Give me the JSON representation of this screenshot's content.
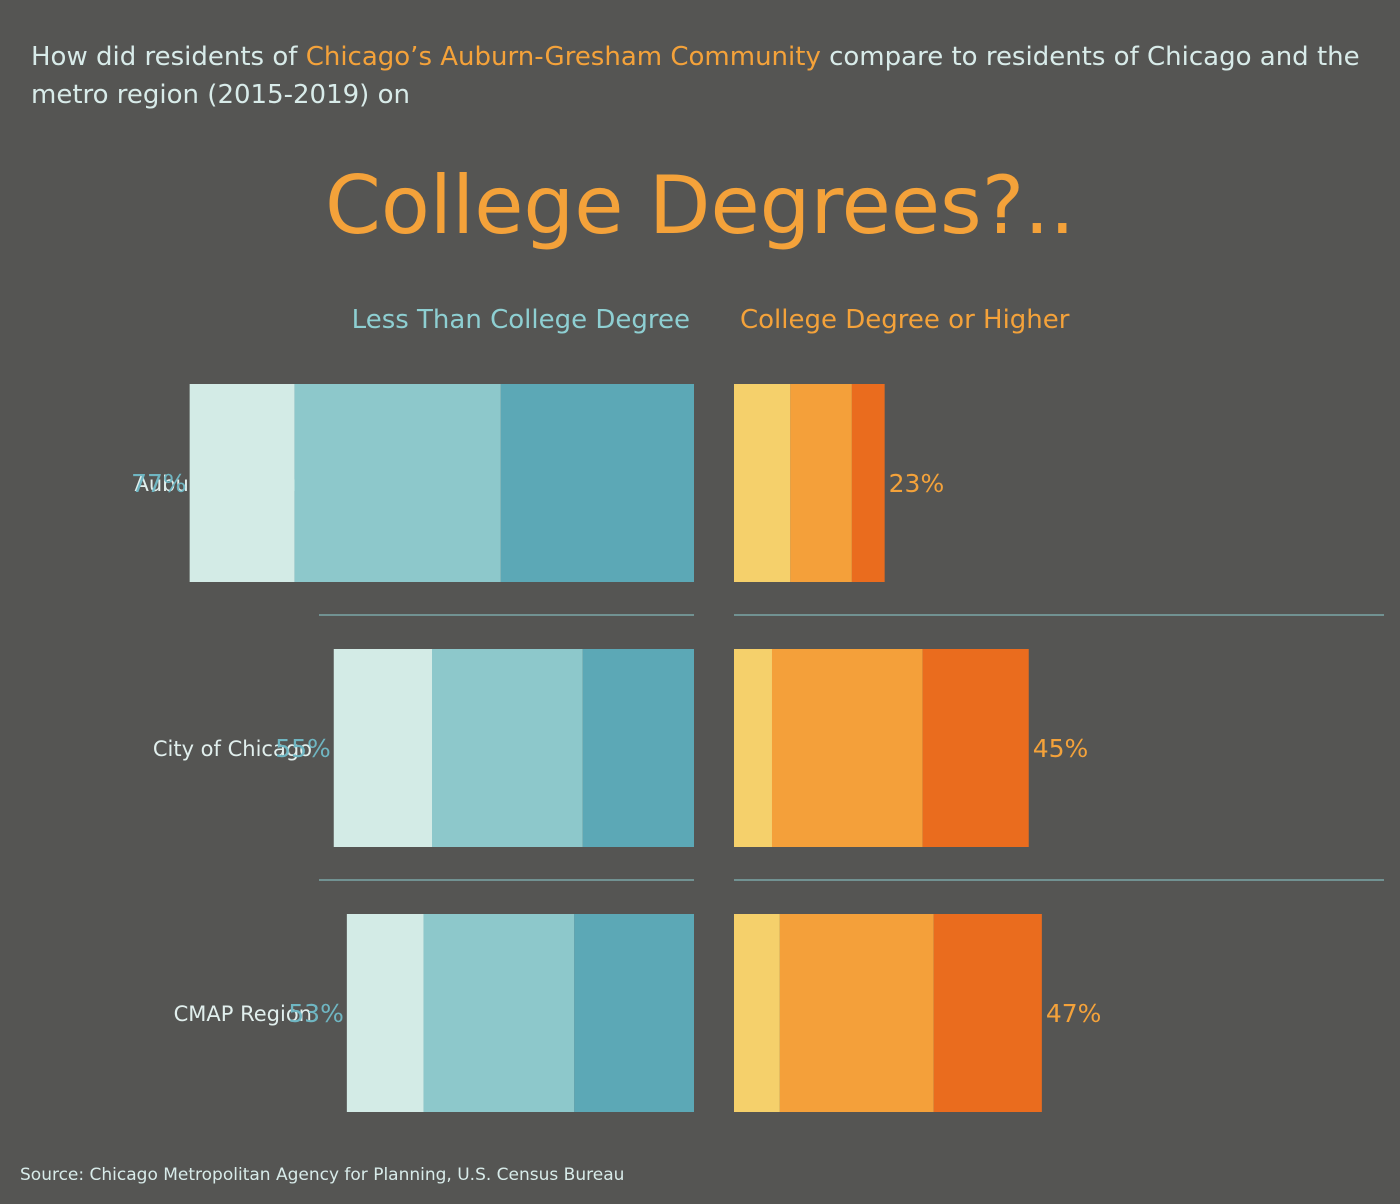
{
  "intro": {
    "prefix": "How did residents of ",
    "highlight": "Chicago’s Auburn-Gresham Community",
    "suffix": " compare to residents of Chicago and the metro region (2015-2019) on"
  },
  "title": "College Degrees?..",
  "source": "Source: Chicago Metropolitan Agency for Planning, U.S. Census Bureau",
  "chart_data": {
    "type": "bar",
    "orientation": "horizontal",
    "stacked": true,
    "columns": [
      {
        "label": "Less Than College Degree",
        "side": "left",
        "segment_colors": [
          "#d3ebe6",
          "#8dc8cb",
          "#5ca8b6"
        ]
      },
      {
        "label": "College Degree or Higher",
        "side": "right",
        "segment_colors": [
          "#f5d06b",
          "#f4a03a",
          "#ea6c1e"
        ]
      }
    ],
    "categories": [
      "Auburn Gresham",
      "City of Chicago",
      "CMAP Region"
    ],
    "rows": [
      {
        "label": "Auburn Gresham",
        "less": {
          "total": 77,
          "total_label": "77%",
          "segments": [
            16,
            31.5,
            29.5
          ]
        },
        "college": {
          "total": 23,
          "total_label": "23%",
          "segments": [
            8.6,
            9.4,
            5
          ]
        }
      },
      {
        "label": "City of Chicago",
        "less": {
          "total": 55,
          "total_label": "55%",
          "segments": [
            15,
            23,
            17
          ]
        },
        "college": {
          "total": 45,
          "total_label": "45%",
          "segments": [
            5.8,
            23,
            16.2
          ]
        }
      },
      {
        "label": "CMAP Region",
        "less": {
          "total": 53,
          "total_label": "53%",
          "segments": [
            11.7,
            23,
            18.3
          ]
        },
        "college": {
          "total": 47,
          "total_label": "47%",
          "segments": [
            7,
            23.5,
            16.5
          ]
        }
      }
    ],
    "divider_colors": {
      "less": "#8ecfd2",
      "college": "#8ecfd2"
    }
  }
}
